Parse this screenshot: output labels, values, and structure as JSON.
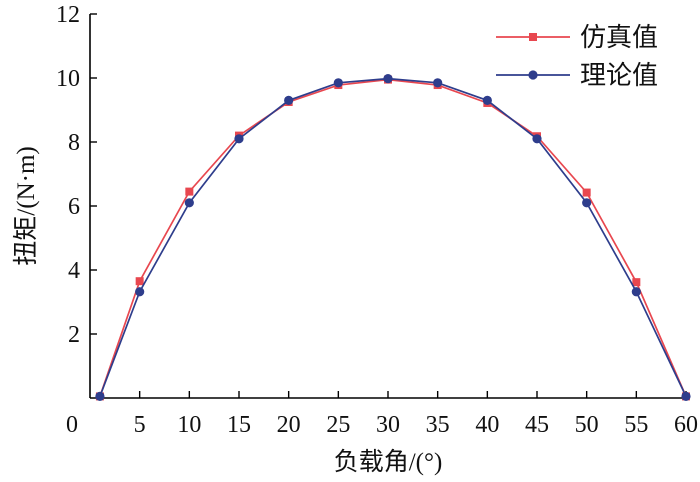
{
  "chart_data": {
    "type": "line",
    "title": "",
    "xlabel": "负载角/(°)",
    "ylabel": "扭矩/(N·m)",
    "xlim": [
      0,
      60
    ],
    "ylim": [
      0,
      12
    ],
    "xticks": [
      0,
      5,
      10,
      15,
      20,
      25,
      30,
      35,
      40,
      45,
      50,
      55,
      60
    ],
    "yticks": [
      2,
      4,
      6,
      8,
      10,
      12
    ],
    "grid": false,
    "legend_position": "top-right",
    "series": [
      {
        "name": "仿真值",
        "color": "#e8474f",
        "marker": "square",
        "x": [
          1,
          5,
          10,
          15,
          20,
          25,
          30,
          35,
          40,
          45,
          50,
          55,
          60
        ],
        "y": [
          0.05,
          3.65,
          6.45,
          8.2,
          9.25,
          9.78,
          9.95,
          9.78,
          9.22,
          8.18,
          6.42,
          3.62,
          0.05
        ]
      },
      {
        "name": "理论值",
        "color": "#2e3d8c",
        "marker": "circle",
        "x": [
          1,
          5,
          10,
          15,
          20,
          25,
          30,
          35,
          40,
          45,
          50,
          55,
          60
        ],
        "y": [
          0.05,
          3.32,
          6.1,
          8.1,
          9.3,
          9.85,
          9.98,
          9.85,
          9.3,
          8.1,
          6.1,
          3.32,
          0.05
        ]
      }
    ]
  }
}
